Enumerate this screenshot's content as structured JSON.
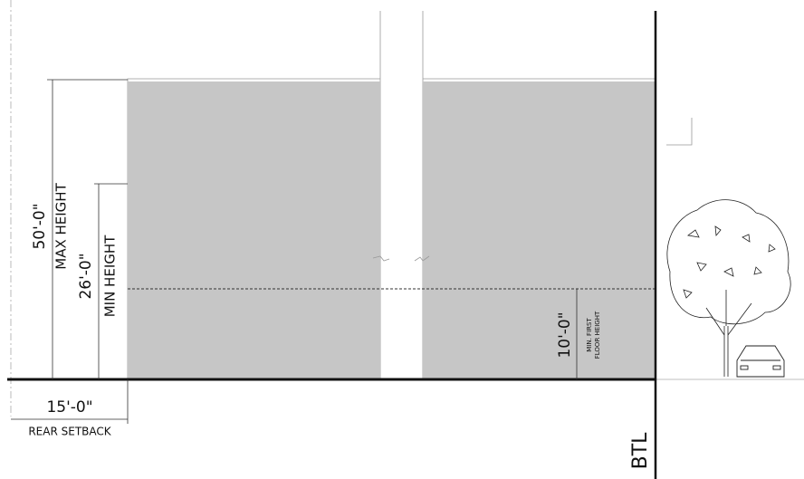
{
  "dimensions": {
    "max_height": {
      "value": "50'-0\"",
      "label": "MAX HEIGHT"
    },
    "min_height": {
      "value": "26'-0\"",
      "label": "MIN HEIGHT"
    },
    "min_first_floor": {
      "value": "10'-0\"",
      "label_lines": [
        "MIN. FIRST",
        "FLOOR HEIGHT"
      ]
    },
    "rear_setback": {
      "value": "15'-0\"",
      "label": "REAR SETBACK"
    }
  },
  "btl": "BTL"
}
